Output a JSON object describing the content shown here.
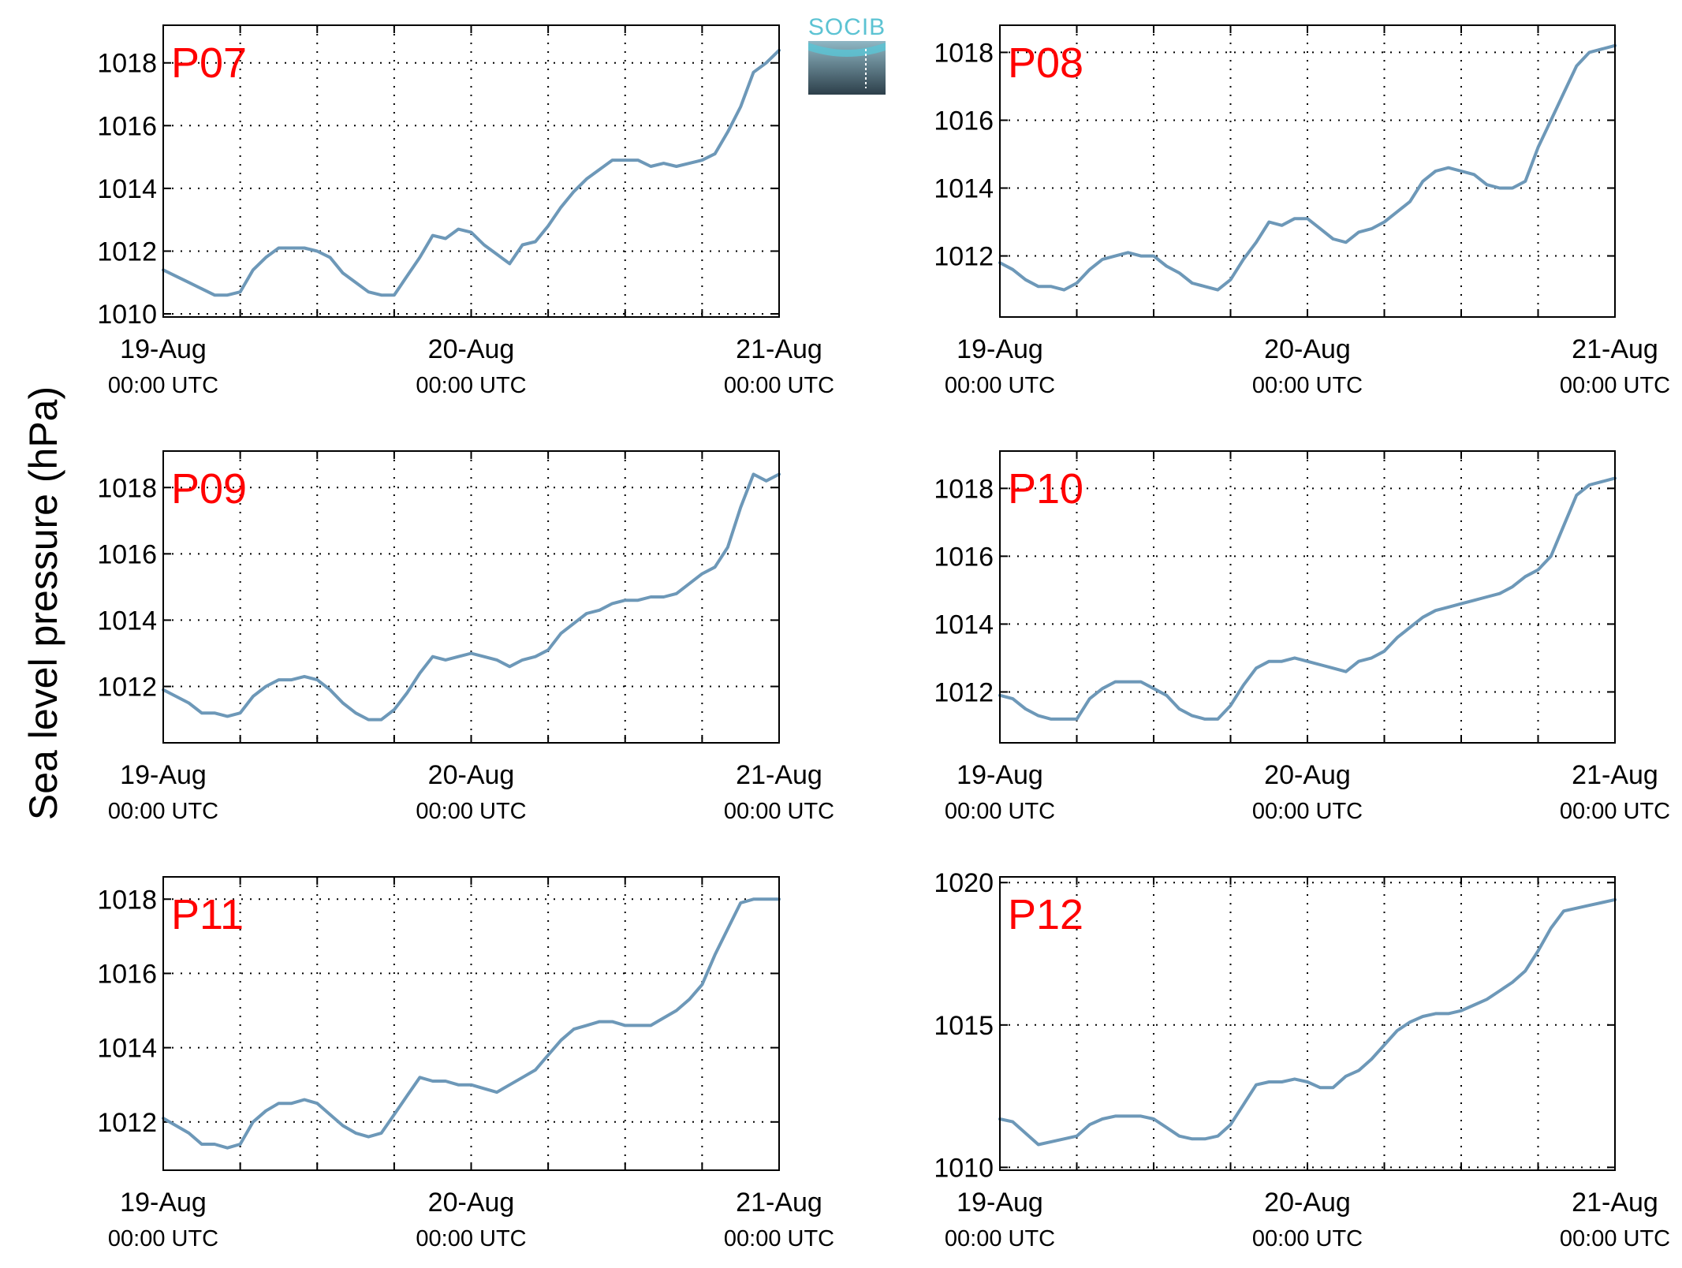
{
  "ylabel": "Sea level pressure (hPa)",
  "logo": {
    "text": "SOCIB"
  },
  "colors": {
    "line": "#6d98b8",
    "station_label": "#ff0000",
    "grid": "#000000",
    "logo_top": "#5cc3d3",
    "logo_bottom": "#2d3f4a"
  },
  "x_axis": {
    "ticks": [
      {
        "label": "19-Aug",
        "sublabel": "00:00 UTC",
        "hours": 0
      },
      {
        "label": "20-Aug",
        "sublabel": "00:00 UTC",
        "hours": 24
      },
      {
        "label": "21-Aug",
        "sublabel": "00:00 UTC",
        "hours": 48
      }
    ],
    "grid_hours": [
      0,
      6,
      12,
      18,
      24,
      30,
      36,
      42,
      48
    ]
  },
  "chart_data": [
    {
      "type": "line",
      "title": "P07",
      "xlim": [
        0,
        48
      ],
      "ylim": [
        1009.9,
        1019.2
      ],
      "yticks": [
        "1010",
        "1012",
        "1014",
        "1016",
        "1018"
      ],
      "x": [
        0,
        1,
        2,
        3,
        4,
        5,
        6,
        7,
        8,
        9,
        10,
        11,
        12,
        13,
        14,
        15,
        16,
        17,
        18,
        19,
        20,
        21,
        22,
        23,
        24,
        25,
        26,
        27,
        28,
        29,
        30,
        31,
        32,
        33,
        34,
        35,
        36,
        37,
        38,
        39,
        40,
        41,
        42,
        43,
        44,
        45,
        46,
        47,
        48
      ],
      "values": [
        1011.4,
        1011.2,
        1011.0,
        1010.8,
        1010.6,
        1010.6,
        1010.7,
        1011.4,
        1011.8,
        1012.1,
        1012.1,
        1012.1,
        1012.0,
        1011.8,
        1011.3,
        1011.0,
        1010.7,
        1010.6,
        1010.6,
        1011.2,
        1011.8,
        1012.5,
        1012.4,
        1012.7,
        1012.6,
        1012.2,
        1011.9,
        1011.6,
        1012.2,
        1012.3,
        1012.8,
        1013.4,
        1013.9,
        1014.3,
        1014.6,
        1014.9,
        1014.9,
        1014.9,
        1014.7,
        1014.8,
        1014.7,
        1014.8,
        1014.9,
        1015.1,
        1015.8,
        1016.6,
        1017.7,
        1018.0,
        1018.4
      ]
    },
    {
      "type": "line",
      "title": "P08",
      "xlim": [
        0,
        48
      ],
      "ylim": [
        1010.2,
        1018.8
      ],
      "yticks": [
        "1012",
        "1014",
        "1016",
        "1018"
      ],
      "x": [
        0,
        1,
        2,
        3,
        4,
        5,
        6,
        7,
        8,
        9,
        10,
        11,
        12,
        13,
        14,
        15,
        16,
        17,
        18,
        19,
        20,
        21,
        22,
        23,
        24,
        25,
        26,
        27,
        28,
        29,
        30,
        31,
        32,
        33,
        34,
        35,
        36,
        37,
        38,
        39,
        40,
        41,
        42,
        43,
        44,
        45,
        46,
        47,
        48
      ],
      "values": [
        1011.8,
        1011.6,
        1011.3,
        1011.1,
        1011.1,
        1011.0,
        1011.2,
        1011.6,
        1011.9,
        1012.0,
        1012.1,
        1012.0,
        1012.0,
        1011.7,
        1011.5,
        1011.2,
        1011.1,
        1011.0,
        1011.3,
        1011.9,
        1012.4,
        1013.0,
        1012.9,
        1013.1,
        1013.1,
        1012.8,
        1012.5,
        1012.4,
        1012.7,
        1012.8,
        1013.0,
        1013.3,
        1013.6,
        1014.2,
        1014.5,
        1014.6,
        1014.5,
        1014.4,
        1014.1,
        1014.0,
        1014.0,
        1014.2,
        1015.2,
        1016.0,
        1016.8,
        1017.6,
        1018.0,
        1018.1,
        1018.2
      ]
    },
    {
      "type": "line",
      "title": "P09",
      "xlim": [
        0,
        48
      ],
      "ylim": [
        1010.3,
        1019.1
      ],
      "yticks": [
        "1012",
        "1014",
        "1016",
        "1018"
      ],
      "x": [
        0,
        1,
        2,
        3,
        4,
        5,
        6,
        7,
        8,
        9,
        10,
        11,
        12,
        13,
        14,
        15,
        16,
        17,
        18,
        19,
        20,
        21,
        22,
        23,
        24,
        25,
        26,
        27,
        28,
        29,
        30,
        31,
        32,
        33,
        34,
        35,
        36,
        37,
        38,
        39,
        40,
        41,
        42,
        43,
        44,
        45,
        46,
        47,
        48
      ],
      "values": [
        1011.9,
        1011.7,
        1011.5,
        1011.2,
        1011.2,
        1011.1,
        1011.2,
        1011.7,
        1012.0,
        1012.2,
        1012.2,
        1012.3,
        1012.2,
        1011.9,
        1011.5,
        1011.2,
        1011.0,
        1011.0,
        1011.3,
        1011.8,
        1012.4,
        1012.9,
        1012.8,
        1012.9,
        1013.0,
        1012.9,
        1012.8,
        1012.6,
        1012.8,
        1012.9,
        1013.1,
        1013.6,
        1013.9,
        1014.2,
        1014.3,
        1014.5,
        1014.6,
        1014.6,
        1014.7,
        1014.7,
        1014.8,
        1015.1,
        1015.4,
        1015.6,
        1016.2,
        1017.4,
        1018.4,
        1018.2,
        1018.4
      ]
    },
    {
      "type": "line",
      "title": "P10",
      "xlim": [
        0,
        48
      ],
      "ylim": [
        1010.5,
        1019.1
      ],
      "yticks": [
        "1012",
        "1014",
        "1016",
        "1018"
      ],
      "x": [
        0,
        1,
        2,
        3,
        4,
        5,
        6,
        7,
        8,
        9,
        10,
        11,
        12,
        13,
        14,
        15,
        16,
        17,
        18,
        19,
        20,
        21,
        22,
        23,
        24,
        25,
        26,
        27,
        28,
        29,
        30,
        31,
        32,
        33,
        34,
        35,
        36,
        37,
        38,
        39,
        40,
        41,
        42,
        43,
        44,
        45,
        46,
        47,
        48
      ],
      "values": [
        1011.9,
        1011.8,
        1011.5,
        1011.3,
        1011.2,
        1011.2,
        1011.2,
        1011.8,
        1012.1,
        1012.3,
        1012.3,
        1012.3,
        1012.1,
        1011.9,
        1011.5,
        1011.3,
        1011.2,
        1011.2,
        1011.6,
        1012.2,
        1012.7,
        1012.9,
        1012.9,
        1013.0,
        1012.9,
        1012.8,
        1012.7,
        1012.6,
        1012.9,
        1013.0,
        1013.2,
        1013.6,
        1013.9,
        1014.2,
        1014.4,
        1014.5,
        1014.6,
        1014.7,
        1014.8,
        1014.9,
        1015.1,
        1015.4,
        1015.6,
        1016.0,
        1016.9,
        1017.8,
        1018.1,
        1018.2,
        1018.3
      ]
    },
    {
      "type": "line",
      "title": "P11",
      "xlim": [
        0,
        48
      ],
      "ylim": [
        1010.7,
        1018.6
      ],
      "yticks": [
        "1012",
        "1014",
        "1016",
        "1018"
      ],
      "x": [
        0,
        1,
        2,
        3,
        4,
        5,
        6,
        7,
        8,
        9,
        10,
        11,
        12,
        13,
        14,
        15,
        16,
        17,
        18,
        19,
        20,
        21,
        22,
        23,
        24,
        25,
        26,
        27,
        28,
        29,
        30,
        31,
        32,
        33,
        34,
        35,
        36,
        37,
        38,
        39,
        40,
        41,
        42,
        43,
        44,
        45,
        46,
        47,
        48
      ],
      "values": [
        1012.1,
        1011.9,
        1011.7,
        1011.4,
        1011.4,
        1011.3,
        1011.4,
        1012.0,
        1012.3,
        1012.5,
        1012.5,
        1012.6,
        1012.5,
        1012.2,
        1011.9,
        1011.7,
        1011.6,
        1011.7,
        1012.2,
        1012.7,
        1013.2,
        1013.1,
        1013.1,
        1013.0,
        1013.0,
        1012.9,
        1012.8,
        1013.0,
        1013.2,
        1013.4,
        1013.8,
        1014.2,
        1014.5,
        1014.6,
        1014.7,
        1014.7,
        1014.6,
        1014.6,
        1014.6,
        1014.8,
        1015.0,
        1015.3,
        1015.7,
        1016.5,
        1017.2,
        1017.9,
        1018.0,
        1018.0,
        1018.0
      ]
    },
    {
      "type": "line",
      "title": "P12",
      "xlim": [
        0,
        48
      ],
      "ylim": [
        1009.9,
        1020.2
      ],
      "yticks": [
        "1010",
        "1015",
        "1020"
      ],
      "x": [
        0,
        1,
        2,
        3,
        4,
        5,
        6,
        7,
        8,
        9,
        10,
        11,
        12,
        13,
        14,
        15,
        16,
        17,
        18,
        19,
        20,
        21,
        22,
        23,
        24,
        25,
        26,
        27,
        28,
        29,
        30,
        31,
        32,
        33,
        34,
        35,
        36,
        37,
        38,
        39,
        40,
        41,
        42,
        43,
        44,
        45,
        46,
        47,
        48
      ],
      "values": [
        1011.7,
        1011.6,
        1011.2,
        1010.8,
        1010.9,
        1011.0,
        1011.1,
        1011.5,
        1011.7,
        1011.8,
        1011.8,
        1011.8,
        1011.7,
        1011.4,
        1011.1,
        1011.0,
        1011.0,
        1011.1,
        1011.5,
        1012.2,
        1012.9,
        1013.0,
        1013.0,
        1013.1,
        1013.0,
        1012.8,
        1012.8,
        1013.2,
        1013.4,
        1013.8,
        1014.3,
        1014.8,
        1015.1,
        1015.3,
        1015.4,
        1015.4,
        1015.5,
        1015.7,
        1015.9,
        1016.2,
        1016.5,
        1016.9,
        1017.6,
        1018.4,
        1019.0,
        1019.1,
        1019.2,
        1019.3,
        1019.4
      ]
    }
  ]
}
